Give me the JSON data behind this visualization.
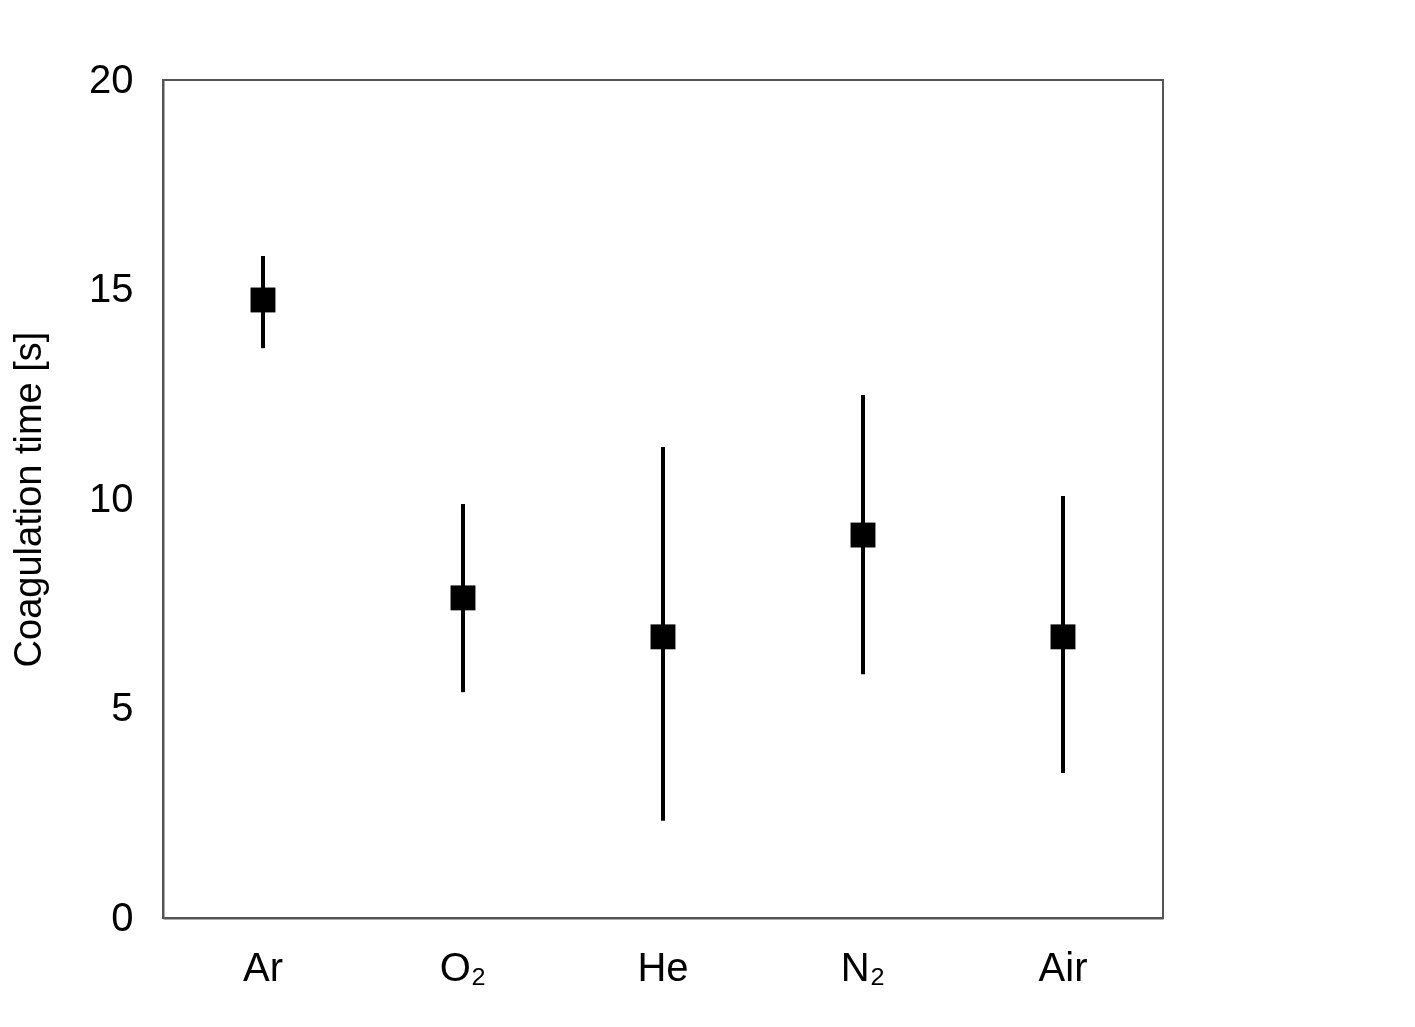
{
  "chart_data": {
    "type": "scatter",
    "ylabel": "Coagulation time [s]",
    "categories": [
      "Ar",
      "O₂",
      "He",
      "N₂",
      "Air"
    ],
    "values": [
      14.75,
      7.64,
      6.71,
      9.14,
      6.71
    ],
    "errors": [
      [
        13.6,
        15.8
      ],
      [
        5.39,
        9.88
      ],
      [
        2.32,
        11.24
      ],
      [
        5.82,
        12.48
      ],
      [
        3.46,
        10.07
      ]
    ],
    "color": "#000000",
    "marker": "square",
    "ylim": [
      0,
      20
    ],
    "yticks": [
      0,
      5,
      10,
      15,
      20
    ],
    "grid": false
  }
}
